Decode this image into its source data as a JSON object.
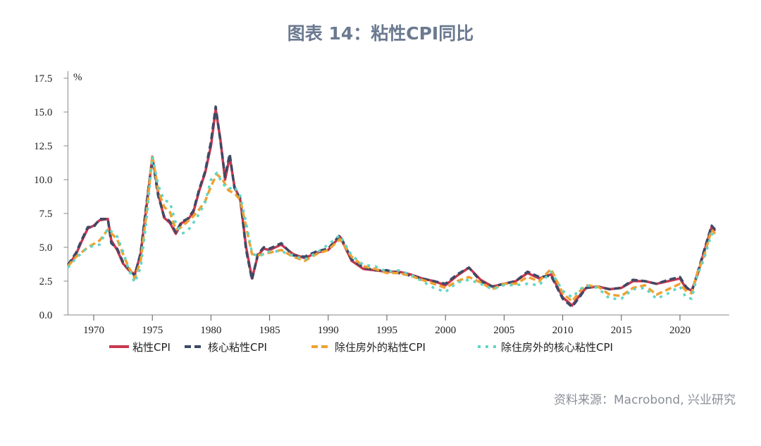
{
  "title": "图表 14：粘性CPI同比",
  "source": "资料来源：Macrobond, 兴业研究",
  "chart_data": {
    "type": "line",
    "title": "图表 14：粘性CPI同比",
    "ylabel": "%",
    "ylim": [
      0,
      17.5
    ],
    "xlim": [
      1967.8,
      2024.2
    ],
    "yticks": [
      "0.0",
      "2.5",
      "5.0",
      "7.5",
      "10.0",
      "12.5",
      "15.0",
      "17.5"
    ],
    "xticks": [
      "1970",
      "1975",
      "1980",
      "1985",
      "1990",
      "1995",
      "2000",
      "2005",
      "2010",
      "2015",
      "2020"
    ],
    "grid": false,
    "legend": "bottom",
    "series": [
      {
        "name": "粘性CPI",
        "color": "#c8374f",
        "dash": "",
        "x": [
          1967.8,
          1968.5,
          1969,
          1969.5,
          1970,
          1970.5,
          1971.2,
          1971.5,
          1972,
          1972.5,
          1973,
          1973.5,
          1974,
          1974.5,
          1975,
          1975.5,
          1976,
          1976.5,
          1977,
          1977.5,
          1978,
          1978.5,
          1979,
          1979.5,
          1980,
          1980.4,
          1980.8,
          1981.2,
          1981.6,
          1982,
          1982.5,
          1983,
          1983.5,
          1984,
          1984.5,
          1985,
          1986,
          1987,
          1988,
          1989,
          1990,
          1991,
          1992,
          1993,
          1994,
          1995,
          1996,
          1997,
          1998,
          1999,
          2000,
          2001,
          2002,
          2003,
          2004,
          2005,
          2006,
          2007,
          2008,
          2009,
          2010,
          2010.8,
          2011.5,
          2012,
          2013,
          2014,
          2015,
          2016,
          2017,
          2018,
          2019,
          2020,
          2020.5,
          2021,
          2021.5,
          2022,
          2022.7,
          2023
        ],
        "y": [
          3.6,
          4.5,
          5.5,
          6.4,
          6.6,
          7.0,
          7.1,
          5.5,
          4.8,
          3.8,
          3.3,
          3.0,
          4.5,
          8.0,
          11.7,
          9.0,
          7.2,
          6.8,
          6.0,
          6.8,
          7.0,
          7.6,
          9.2,
          10.5,
          12.5,
          15.2,
          13.0,
          10.0,
          11.7,
          9.5,
          8.5,
          5.0,
          2.7,
          4.4,
          4.9,
          4.8,
          5.2,
          4.5,
          4.2,
          4.6,
          4.8,
          5.8,
          4.0,
          3.4,
          3.3,
          3.2,
          3.2,
          3.0,
          2.7,
          2.5,
          2.2,
          2.9,
          3.5,
          2.6,
          2.1,
          2.3,
          2.5,
          3.1,
          2.7,
          3.0,
          1.3,
          0.7,
          1.5,
          2.0,
          2.1,
          1.9,
          2.0,
          2.5,
          2.5,
          2.3,
          2.5,
          2.7,
          2.0,
          1.8,
          3.0,
          4.5,
          6.5,
          6.2
        ]
      },
      {
        "name": "核心粘性CPI",
        "color": "#3d4a66",
        "dash": "9,5",
        "x": [
          1967.8,
          1968.5,
          1969,
          1969.5,
          1970,
          1970.5,
          1971.2,
          1971.5,
          1972,
          1972.5,
          1973,
          1973.5,
          1974,
          1974.5,
          1975,
          1975.5,
          1976,
          1976.5,
          1977,
          1977.5,
          1978,
          1978.5,
          1979,
          1979.5,
          1980,
          1980.4,
          1980.8,
          1981.2,
          1981.6,
          1982,
          1982.5,
          1983,
          1983.5,
          1984,
          1984.5,
          1985,
          1986,
          1987,
          1988,
          1989,
          1990,
          1991,
          1992,
          1993,
          1994,
          1995,
          1996,
          1997,
          1998,
          1999,
          2000,
          2001,
          2002,
          2003,
          2004,
          2005,
          2006,
          2007,
          2008,
          2009,
          2010,
          2010.8,
          2011.5,
          2012,
          2013,
          2014,
          2015,
          2016,
          2017,
          2018,
          2019,
          2020,
          2020.5,
          2021,
          2021.5,
          2022,
          2022.7,
          2023
        ],
        "y": [
          3.7,
          4.6,
          5.6,
          6.5,
          6.5,
          7.1,
          7.1,
          5.3,
          4.9,
          3.9,
          3.4,
          2.9,
          4.6,
          8.2,
          11.6,
          8.8,
          7.3,
          6.9,
          6.1,
          6.9,
          7.1,
          7.7,
          9.3,
          10.6,
          12.8,
          15.4,
          12.9,
          10.2,
          11.9,
          9.4,
          8.6,
          4.8,
          2.6,
          4.5,
          5.0,
          4.9,
          5.3,
          4.4,
          4.3,
          4.7,
          4.9,
          5.9,
          4.1,
          3.5,
          3.3,
          3.3,
          3.1,
          2.9,
          2.7,
          2.5,
          2.3,
          3.0,
          3.5,
          2.5,
          2.1,
          2.3,
          2.5,
          3.2,
          2.8,
          2.9,
          1.2,
          0.6,
          1.4,
          2.0,
          2.1,
          1.9,
          2.0,
          2.6,
          2.5,
          2.3,
          2.6,
          2.8,
          2.1,
          1.7,
          3.1,
          4.6,
          6.6,
          6.3
        ]
      },
      {
        "name": "除住房外的粘性CPI",
        "color": "#f0a030",
        "dash": "9,5",
        "x": [
          1967.8,
          1968.5,
          1969.5,
          1970.5,
          1971.2,
          1972,
          1972.5,
          1973,
          1973.5,
          1974,
          1974.5,
          1975,
          1975.5,
          1976,
          1976.5,
          1977,
          1977.5,
          1978,
          1978.5,
          1979,
          1979.5,
          1980,
          1980.5,
          1981,
          1981.5,
          1982,
          1982.5,
          1983,
          1983.5,
          1984,
          1985,
          1986,
          1987,
          1988,
          1989,
          1990,
          1991,
          1992,
          1993,
          1994,
          1995,
          1996,
          1997,
          1998,
          1999,
          2000,
          2001,
          2002,
          2003,
          2004,
          2005,
          2006,
          2007,
          2008,
          2009,
          2010,
          2010.8,
          2011.5,
          2012,
          2013,
          2014,
          2015,
          2016,
          2017,
          2018,
          2019,
          2020,
          2020.5,
          2021,
          2021.5,
          2022,
          2022.7,
          2023
        ],
        "y": [
          3.6,
          4.3,
          5.0,
          5.5,
          6.3,
          5.6,
          4.5,
          3.5,
          2.7,
          4.0,
          7.5,
          11.8,
          9.2,
          8.0,
          7.6,
          6.3,
          6.5,
          6.9,
          7.3,
          7.8,
          8.4,
          9.5,
          10.4,
          10.0,
          9.2,
          9.0,
          8.5,
          6.5,
          4.5,
          4.4,
          4.6,
          4.8,
          4.3,
          4.0,
          4.5,
          4.8,
          5.6,
          4.3,
          3.6,
          3.4,
          3.1,
          3.1,
          2.9,
          2.6,
          2.3,
          2.0,
          2.5,
          2.8,
          2.4,
          1.9,
          2.3,
          2.3,
          2.8,
          2.5,
          3.4,
          1.6,
          1.0,
          1.8,
          2.2,
          2.1,
          1.5,
          1.4,
          2.0,
          2.2,
          1.5,
          1.9,
          2.3,
          1.8,
          1.6,
          3.2,
          4.2,
          6.3,
          6.0
        ]
      },
      {
        "name": "除住房外的核心粘性CPI",
        "color": "#5fd6c8",
        "dash": "4,7",
        "x": [
          1967.8,
          1968.5,
          1969.5,
          1970.5,
          1971.2,
          1972,
          1972.5,
          1973,
          1973.5,
          1974,
          1974.5,
          1975,
          1975.5,
          1976,
          1976.5,
          1977,
          1977.5,
          1978,
          1978.5,
          1979,
          1979.5,
          1980,
          1980.5,
          1981,
          1981.5,
          1982,
          1982.5,
          1983,
          1983.5,
          1984,
          1985,
          1986,
          1987,
          1988,
          1989,
          1990,
          1991,
          1992,
          1993,
          1994,
          1995,
          1996,
          1997,
          1998,
          1999,
          2000,
          2001,
          2002,
          2003,
          2004,
          2005,
          2006,
          2007,
          2008,
          2009,
          2010,
          2010.8,
          2011.5,
          2012,
          2013,
          2014,
          2015,
          2016,
          2017,
          2018,
          2019,
          2020,
          2020.5,
          2021,
          2021.5,
          2022,
          2022.7,
          2023
        ],
        "y": [
          3.5,
          4.2,
          5.0,
          5.2,
          6.4,
          5.8,
          4.7,
          3.3,
          2.4,
          3.5,
          7.0,
          11.7,
          9.6,
          8.5,
          8.3,
          6.8,
          6.0,
          6.2,
          6.8,
          7.5,
          8.3,
          10.0,
          10.5,
          9.7,
          9.3,
          9.5,
          8.8,
          6.8,
          4.6,
          4.3,
          4.7,
          4.7,
          4.4,
          4.1,
          4.6,
          5.2,
          5.9,
          4.4,
          3.7,
          3.6,
          3.2,
          3.3,
          3.0,
          2.5,
          2.0,
          1.7,
          2.4,
          2.6,
          2.3,
          1.9,
          2.2,
          2.2,
          2.3,
          2.2,
          3.2,
          1.8,
          1.3,
          1.9,
          2.2,
          2.0,
          1.2,
          1.2,
          1.9,
          2.0,
          1.2,
          1.6,
          2.1,
          1.3,
          1.2,
          3.0,
          4.0,
          6.0,
          5.8
        ]
      }
    ]
  }
}
